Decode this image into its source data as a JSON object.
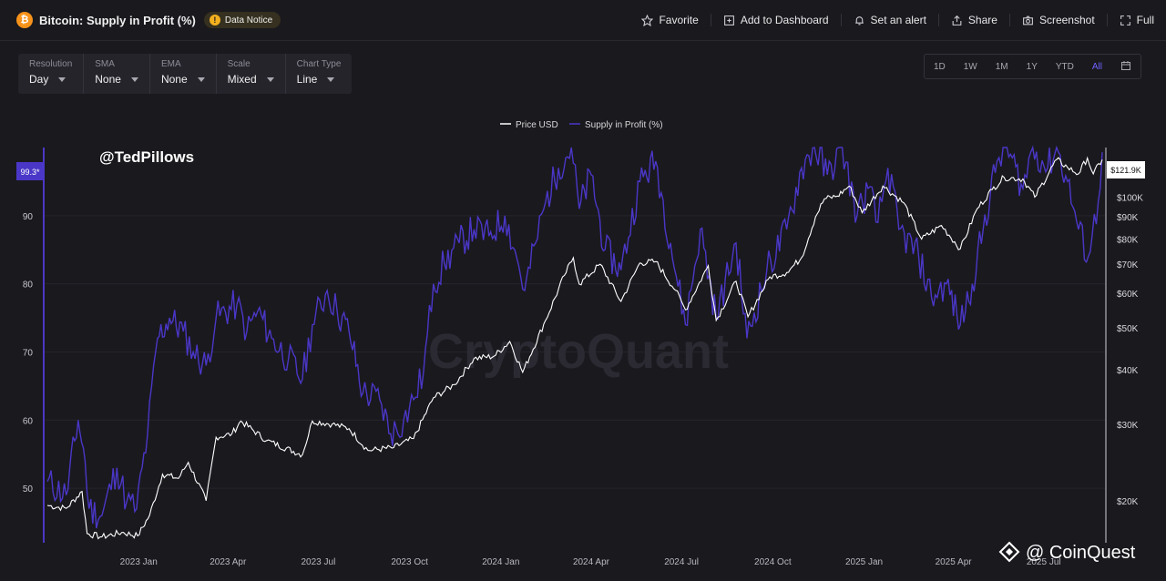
{
  "header": {
    "title": "Bitcoin: Supply in Profit (%)",
    "notice": "Data Notice",
    "actions": [
      {
        "label": "Favorite",
        "icon": "star-icon"
      },
      {
        "label": "Add to Dashboard",
        "icon": "dashboard-icon"
      },
      {
        "label": "Set an alert",
        "icon": "bell-icon"
      },
      {
        "label": "Share",
        "icon": "share-icon"
      },
      {
        "label": "Screenshot",
        "icon": "camera-icon"
      },
      {
        "label": "Full",
        "icon": "fullscreen-icon"
      }
    ]
  },
  "controls": [
    {
      "label": "Resolution",
      "value": "Day"
    },
    {
      "label": "SMA",
      "value": "None"
    },
    {
      "label": "EMA",
      "value": "None"
    },
    {
      "label": "Scale",
      "value": "Mixed"
    },
    {
      "label": "Chart Type",
      "value": "Line"
    }
  ],
  "ranges": [
    "1D",
    "1W",
    "1M",
    "1Y",
    "YTD",
    "All"
  ],
  "active_range": "All",
  "watermark": "CryptoQuant",
  "author_tag": "@TedPillows",
  "credit": "@ CoinQuest",
  "colors": {
    "supply": "#4a37c8",
    "price": "#ffffff",
    "accent": "#6e63ff",
    "background": "#1a191e"
  },
  "chart_data": {
    "type": "line",
    "x_ticks": [
      "2023 Jan",
      "2023 Apr",
      "2023 Jul",
      "2023 Oct",
      "2024 Jan",
      "2024 Apr",
      "2024 Jul",
      "2024 Oct",
      "2025 Jan",
      "2025 Apr",
      "2025 Jul"
    ],
    "legend": [
      "Price USD",
      "Supply in Profit (%)"
    ],
    "legend_position": "top-center",
    "y_left": {
      "ticks": [
        50,
        60,
        70,
        80,
        90
      ],
      "range": [
        42,
        100
      ]
    },
    "y_right": {
      "scale": "log",
      "ticks": [
        "$20K",
        "$30K",
        "$40K",
        "$50K",
        "$60K",
        "$70K",
        "$80K",
        "$90K",
        "$100K"
      ],
      "range": [
        16000,
        130000
      ]
    },
    "last_left_label": "99.3*",
    "last_right_label": "$121.9K",
    "series": [
      {
        "name": "Supply in Profit (%)",
        "axis": "left",
        "points": [
          [
            "2022-10-01",
            51
          ],
          [
            "2022-10-20",
            49
          ],
          [
            "2022-11-01",
            60
          ],
          [
            "2022-11-08",
            54
          ],
          [
            "2022-11-12",
            47
          ],
          [
            "2022-11-25",
            46
          ],
          [
            "2022-12-10",
            53
          ],
          [
            "2022-12-20",
            48
          ],
          [
            "2022-12-30",
            47
          ],
          [
            "2023-01-10",
            58
          ],
          [
            "2023-01-20",
            72
          ],
          [
            "2023-02-01",
            75
          ],
          [
            "2023-02-15",
            73
          ],
          [
            "2023-02-25",
            70
          ],
          [
            "2023-03-10",
            68
          ],
          [
            "2023-03-20",
            75
          ],
          [
            "2023-04-10",
            77
          ],
          [
            "2023-04-20",
            73
          ],
          [
            "2023-05-01",
            76
          ],
          [
            "2023-05-15",
            72
          ],
          [
            "2023-06-01",
            69
          ],
          [
            "2023-06-15",
            66
          ],
          [
            "2023-06-25",
            74
          ],
          [
            "2023-07-10",
            79
          ],
          [
            "2023-07-20",
            76
          ],
          [
            "2023-08-01",
            73
          ],
          [
            "2023-08-15",
            64
          ],
          [
            "2023-09-01",
            63
          ],
          [
            "2023-09-12",
            58
          ],
          [
            "2023-09-25",
            60
          ],
          [
            "2023-10-05",
            63
          ],
          [
            "2023-10-15",
            67
          ],
          [
            "2023-10-25",
            80
          ],
          [
            "2023-11-05",
            83
          ],
          [
            "2023-11-20",
            86
          ],
          [
            "2023-12-05",
            88
          ],
          [
            "2023-12-20",
            87
          ],
          [
            "2024-01-05",
            90
          ],
          [
            "2024-01-15",
            85
          ],
          [
            "2024-01-25",
            79
          ],
          [
            "2024-02-05",
            86
          ],
          [
            "2024-02-15",
            92
          ],
          [
            "2024-02-28",
            97
          ],
          [
            "2024-03-12",
            100
          ],
          [
            "2024-03-20",
            91
          ],
          [
            "2024-04-01",
            96
          ],
          [
            "2024-04-15",
            85
          ],
          [
            "2024-05-01",
            82
          ],
          [
            "2024-05-20",
            95
          ],
          [
            "2024-06-05",
            98
          ],
          [
            "2024-06-20",
            86
          ],
          [
            "2024-07-05",
            74
          ],
          [
            "2024-07-20",
            88
          ],
          [
            "2024-08-05",
            75
          ],
          [
            "2024-08-25",
            86
          ],
          [
            "2024-09-05",
            72
          ],
          [
            "2024-09-25",
            82
          ],
          [
            "2024-10-15",
            88
          ],
          [
            "2024-10-30",
            97
          ],
          [
            "2024-11-12",
            100
          ],
          [
            "2024-11-25",
            96
          ],
          [
            "2024-12-10",
            100
          ],
          [
            "2024-12-25",
            90
          ],
          [
            "2025-01-05",
            94
          ],
          [
            "2025-01-15",
            89
          ],
          [
            "2025-01-25",
            97
          ],
          [
            "2025-02-05",
            88
          ],
          [
            "2025-02-25",
            84
          ],
          [
            "2025-03-10",
            78
          ],
          [
            "2025-03-25",
            80
          ],
          [
            "2025-04-08",
            74
          ],
          [
            "2025-04-20",
            80
          ],
          [
            "2025-05-01",
            88
          ],
          [
            "2025-05-15",
            98
          ],
          [
            "2025-05-25",
            100
          ],
          [
            "2025-06-10",
            94
          ],
          [
            "2025-06-20",
            100
          ],
          [
            "2025-07-05",
            97
          ],
          [
            "2025-07-14",
            100
          ],
          [
            "2025-07-25",
            95
          ],
          [
            "2025-08-05",
            88
          ],
          [
            "2025-08-15",
            84
          ],
          [
            "2025-08-25",
            92
          ],
          [
            "2025-08-29",
            99.3
          ]
        ]
      },
      {
        "name": "Price USD",
        "axis": "right",
        "points": [
          [
            "2022-10-01",
            19500
          ],
          [
            "2022-10-20",
            19200
          ],
          [
            "2022-11-05",
            21000
          ],
          [
            "2022-11-10",
            16800
          ],
          [
            "2022-11-25",
            16500
          ],
          [
            "2022-12-15",
            16900
          ],
          [
            "2022-12-31",
            16600
          ],
          [
            "2023-01-12",
            18500
          ],
          [
            "2023-01-25",
            23000
          ],
          [
            "2023-02-10",
            22500
          ],
          [
            "2023-02-20",
            24500
          ],
          [
            "2023-03-10",
            20000
          ],
          [
            "2023-03-20",
            28000
          ],
          [
            "2023-04-05",
            28500
          ],
          [
            "2023-04-14",
            30500
          ],
          [
            "2023-05-10",
            27500
          ],
          [
            "2023-06-15",
            25500
          ],
          [
            "2023-06-25",
            30500
          ],
          [
            "2023-07-15",
            30000
          ],
          [
            "2023-08-01",
            29300
          ],
          [
            "2023-08-20",
            26100
          ],
          [
            "2023-09-15",
            26500
          ],
          [
            "2023-10-05",
            27800
          ],
          [
            "2023-10-25",
            34500
          ],
          [
            "2023-11-15",
            37000
          ],
          [
            "2023-12-05",
            42500
          ],
          [
            "2023-12-25",
            43000
          ],
          [
            "2024-01-10",
            46500
          ],
          [
            "2024-01-23",
            39500
          ],
          [
            "2024-02-15",
            52000
          ],
          [
            "2024-03-05",
            66000
          ],
          [
            "2024-03-14",
            72500
          ],
          [
            "2024-03-20",
            63000
          ],
          [
            "2024-04-10",
            70000
          ],
          [
            "2024-05-01",
            57500
          ],
          [
            "2024-05-20",
            70500
          ],
          [
            "2024-06-05",
            71000
          ],
          [
            "2024-06-25",
            61000
          ],
          [
            "2024-07-05",
            55000
          ],
          [
            "2024-07-28",
            69500
          ],
          [
            "2024-08-05",
            52000
          ],
          [
            "2024-08-25",
            64000
          ],
          [
            "2024-09-06",
            53000
          ],
          [
            "2024-09-28",
            65500
          ],
          [
            "2024-10-15",
            67000
          ],
          [
            "2024-10-30",
            72500
          ],
          [
            "2024-11-13",
            90000
          ],
          [
            "2024-11-22",
            99000
          ],
          [
            "2024-12-05",
            100500
          ],
          [
            "2024-12-17",
            106000
          ],
          [
            "2024-12-30",
            92000
          ],
          [
            "2025-01-20",
            106000
          ],
          [
            "2025-02-10",
            97000
          ],
          [
            "2025-02-28",
            80000
          ],
          [
            "2025-03-20",
            86000
          ],
          [
            "2025-04-08",
            76000
          ],
          [
            "2025-04-25",
            94000
          ],
          [
            "2025-05-10",
            104000
          ],
          [
            "2025-05-22",
            111000
          ],
          [
            "2025-06-10",
            110000
          ],
          [
            "2025-06-22",
            100000
          ],
          [
            "2025-07-14",
            122000
          ],
          [
            "2025-07-25",
            117000
          ],
          [
            "2025-08-05",
            113000
          ],
          [
            "2025-08-14",
            123000
          ],
          [
            "2025-08-20",
            113000
          ],
          [
            "2025-08-29",
            121900
          ]
        ]
      }
    ]
  }
}
